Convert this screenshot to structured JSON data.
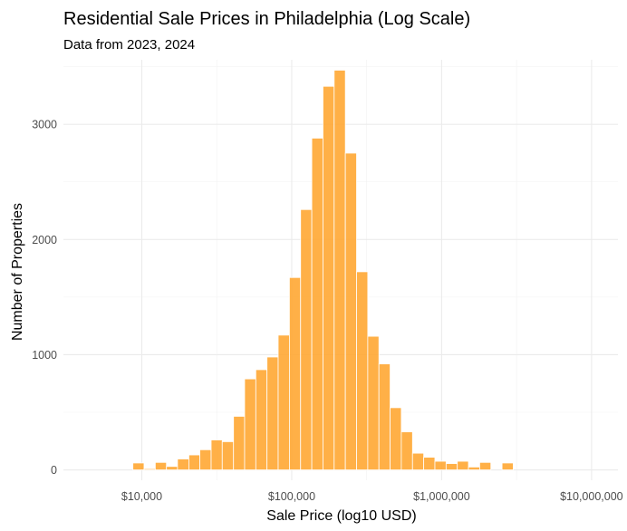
{
  "chart_data": {
    "type": "bar",
    "title": "Residential Sale Prices in Philadelphia (Log Scale)",
    "subtitle": "Data from 2023, 2024",
    "xlabel": "Sale Price (log10 USD)",
    "ylabel": "Number of Properties",
    "x_scale": "log10",
    "xlim": [
      3000,
      15000000
    ],
    "ylim": [
      -90,
      3560
    ],
    "x_ticks": [
      {
        "value": 10000,
        "label": "$10,000"
      },
      {
        "value": 100000,
        "label": "$100,000"
      },
      {
        "value": 1000000,
        "label": "$1,000,000"
      },
      {
        "value": 10000000,
        "label": "$10,000,000"
      }
    ],
    "y_ticks": [
      {
        "value": 0,
        "label": "0"
      },
      {
        "value": 1000,
        "label": "1000"
      },
      {
        "value": 2000,
        "label": "2000"
      },
      {
        "value": 3000,
        "label": "3000"
      }
    ],
    "grid": true,
    "bar_color": "#FFA733",
    "series": [
      {
        "bins": [
          {
            "x0": 8720,
            "x1": 10350,
            "count": 60
          },
          {
            "x0": 10350,
            "x1": 12300,
            "count": 10
          },
          {
            "x0": 12300,
            "x1": 14600,
            "count": 65
          },
          {
            "x0": 14600,
            "x1": 17300,
            "count": 30
          },
          {
            "x0": 17300,
            "x1": 20600,
            "count": 95
          },
          {
            "x0": 20600,
            "x1": 24400,
            "count": 130
          },
          {
            "x0": 24400,
            "x1": 29000,
            "count": 175
          },
          {
            "x0": 29000,
            "x1": 34400,
            "count": 260
          },
          {
            "x0": 34400,
            "x1": 40900,
            "count": 245
          },
          {
            "x0": 40900,
            "x1": 48500,
            "count": 465
          },
          {
            "x0": 48500,
            "x1": 57600,
            "count": 790
          },
          {
            "x0": 57600,
            "x1": 68400,
            "count": 870
          },
          {
            "x0": 68400,
            "x1": 81200,
            "count": 980
          },
          {
            "x0": 81200,
            "x1": 96500,
            "count": 1170
          },
          {
            "x0": 96500,
            "x1": 114600,
            "count": 1670
          },
          {
            "x0": 114600,
            "x1": 136100,
            "count": 2260
          },
          {
            "x0": 136100,
            "x1": 161600,
            "count": 2880
          },
          {
            "x0": 161600,
            "x1": 191900,
            "count": 3330
          },
          {
            "x0": 191900,
            "x1": 227900,
            "count": 3470
          },
          {
            "x0": 227900,
            "x1": 270700,
            "count": 2750
          },
          {
            "x0": 270700,
            "x1": 321500,
            "count": 1720
          },
          {
            "x0": 321500,
            "x1": 381700,
            "count": 1160
          },
          {
            "x0": 381700,
            "x1": 453300,
            "count": 920
          },
          {
            "x0": 453300,
            "x1": 538400,
            "count": 540
          },
          {
            "x0": 538400,
            "x1": 639400,
            "count": 330
          },
          {
            "x0": 639400,
            "x1": 759300,
            "count": 145
          },
          {
            "x0": 759300,
            "x1": 901800,
            "count": 110
          },
          {
            "x0": 901800,
            "x1": 1071000,
            "count": 75
          },
          {
            "x0": 1071000,
            "x1": 1272000,
            "count": 55
          },
          {
            "x0": 1272000,
            "x1": 1510000,
            "count": 75
          },
          {
            "x0": 1510000,
            "x1": 1794000,
            "count": 25
          },
          {
            "x0": 1794000,
            "x1": 2130000,
            "count": 65
          },
          {
            "x0": 2130000,
            "x1": 2530000,
            "count": 0
          },
          {
            "x0": 2530000,
            "x1": 3004000,
            "count": 60
          }
        ]
      }
    ]
  }
}
